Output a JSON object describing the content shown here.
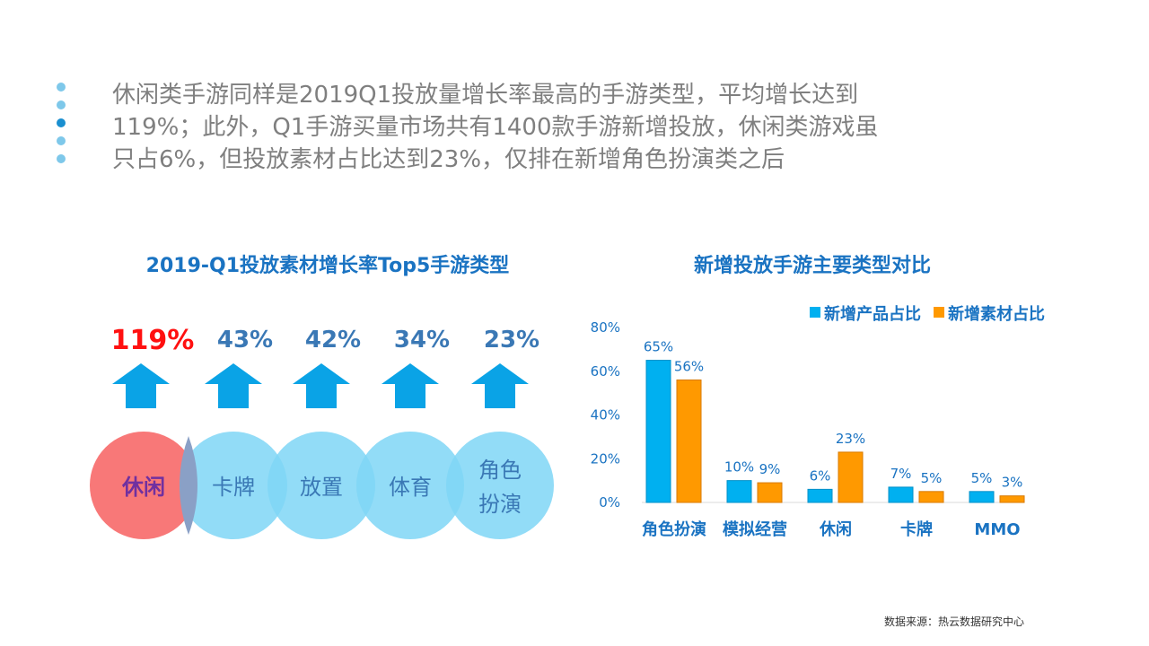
{
  "intro": {
    "lines": [
      "休闲类手游同样是2019Q1投放量增长率最高的手游类型，平均增长达到",
      "119%；此外，Q1手游买量市场共有1400款手游新增投放，休闲类游戏虽",
      "只占6%，但投放素材占比达到23%，仅排在新增角色扮演类之后"
    ]
  },
  "left_panel": {
    "title": "2019-Q1投放素材增长率Top5手游类型",
    "items": [
      {
        "pct": "119%",
        "label_lines": [
          "休闲"
        ]
      },
      {
        "pct": "43%",
        "label_lines": [
          "卡牌"
        ]
      },
      {
        "pct": "42%",
        "label_lines": [
          "放置"
        ]
      },
      {
        "pct": "34%",
        "label_lines": [
          "体育"
        ]
      },
      {
        "pct": "23%",
        "label_lines": [
          "角色",
          "扮演"
        ]
      }
    ],
    "colors": {
      "highlight_circle": "#f87878",
      "circle": "#7fd6f6",
      "arrow": "#0aa3e6",
      "highlight_text": "#ff1010",
      "pct_text": "#3a78b5",
      "highlight_label": "#7030a0"
    }
  },
  "chart_data": {
    "type": "bar",
    "title": "新增投放手游主要类型对比",
    "categories": [
      "角色扮演",
      "模拟经营",
      "休闲",
      "卡牌",
      "MMO"
    ],
    "series": [
      {
        "name": "新增产品占比",
        "values": [
          65,
          10,
          6,
          7,
          5
        ],
        "labels": [
          "65%",
          "10%",
          "6%",
          "7%",
          "5%"
        ],
        "color": "#00b0f0"
      },
      {
        "name": "新增素材占比",
        "values": [
          56,
          9,
          23,
          5,
          3
        ],
        "labels": [
          "56%",
          "9%",
          "23%",
          "5%",
          "3%"
        ],
        "color": "#ff9900"
      }
    ],
    "ylim": [
      0,
      80
    ],
    "yticks": [
      "0%",
      "20%",
      "40%",
      "60%",
      "80%"
    ],
    "grid": false,
    "legend": "top-right"
  },
  "source": "数据来源：热云数据研究中心"
}
